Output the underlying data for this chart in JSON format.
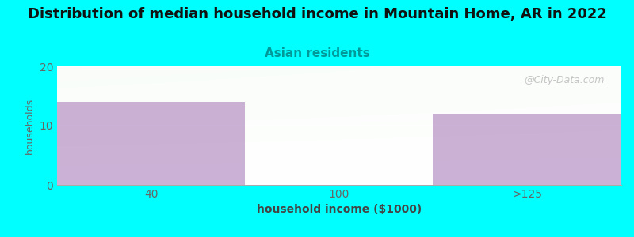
{
  "title": "Distribution of median household income in Mountain Home, AR in 2022",
  "subtitle": "Asian residents",
  "xlabel": "household income ($1000)",
  "ylabel": "households",
  "categories": [
    "40",
    "100",
    ">125"
  ],
  "values": [
    14,
    0,
    12
  ],
  "bar_color": "#c0a0cc",
  "background_color": "#00ffff",
  "title_fontsize": 13,
  "title_fontweight": "bold",
  "subtitle_fontsize": 11,
  "subtitle_color": "#009999",
  "ylabel_color": "#666666",
  "xlabel_color": "#444444",
  "tick_color": "#666666",
  "ylim": [
    0,
    20
  ],
  "yticks": [
    0,
    10,
    20
  ],
  "watermark": "@City-Data.com",
  "watermark_color": "#bbbbbb",
  "xlabel_fontweight": "bold",
  "bar_edges": [
    0,
    1,
    2,
    3
  ]
}
